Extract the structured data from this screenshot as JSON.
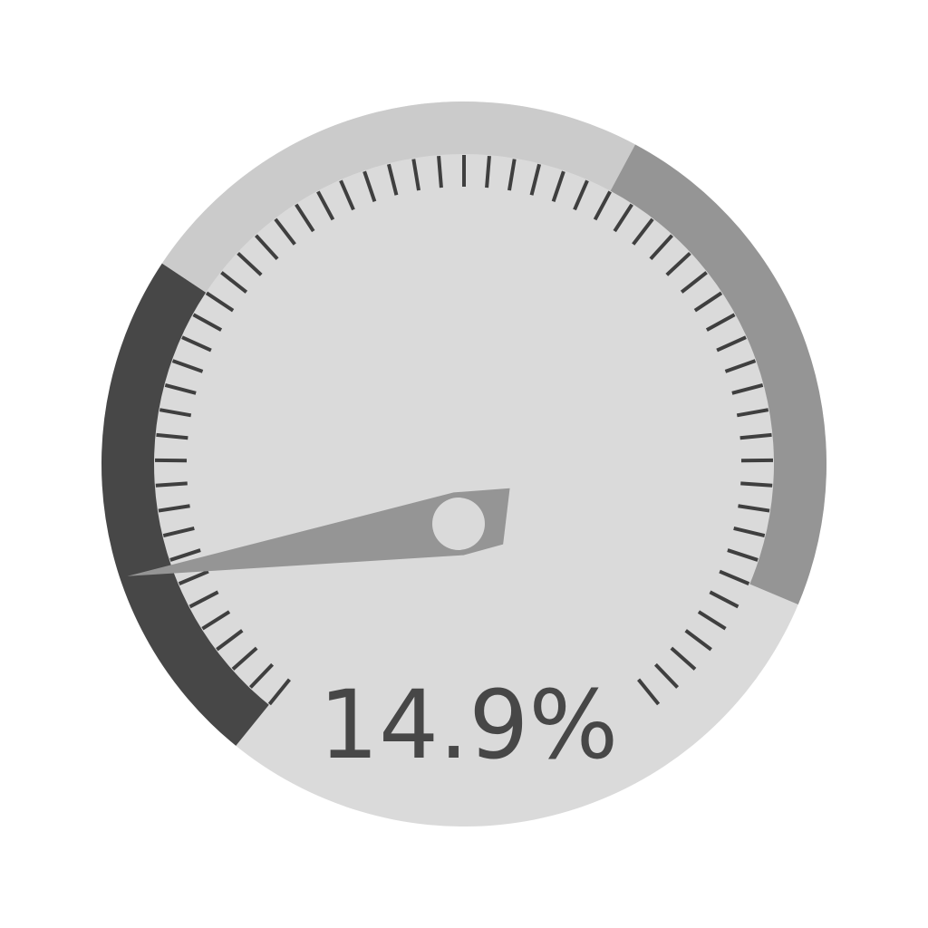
{
  "chart_data": {
    "type": "gauge",
    "value": 14.9,
    "min": 0,
    "max": 100,
    "display_value": "14.9%",
    "bands": [
      {
        "from": 0,
        "to": 30,
        "color": "#474747"
      },
      {
        "from": 30,
        "to": 60,
        "color": "#cbcbcb"
      },
      {
        "from": 60,
        "to": 90,
        "color": "#959595"
      }
    ],
    "minor_ticks": 60
  },
  "colors": {
    "face": "#dadada",
    "tick": "#3f3f3f",
    "needle": "#959595",
    "hub_center": "#dadada",
    "readout": "#474747"
  }
}
